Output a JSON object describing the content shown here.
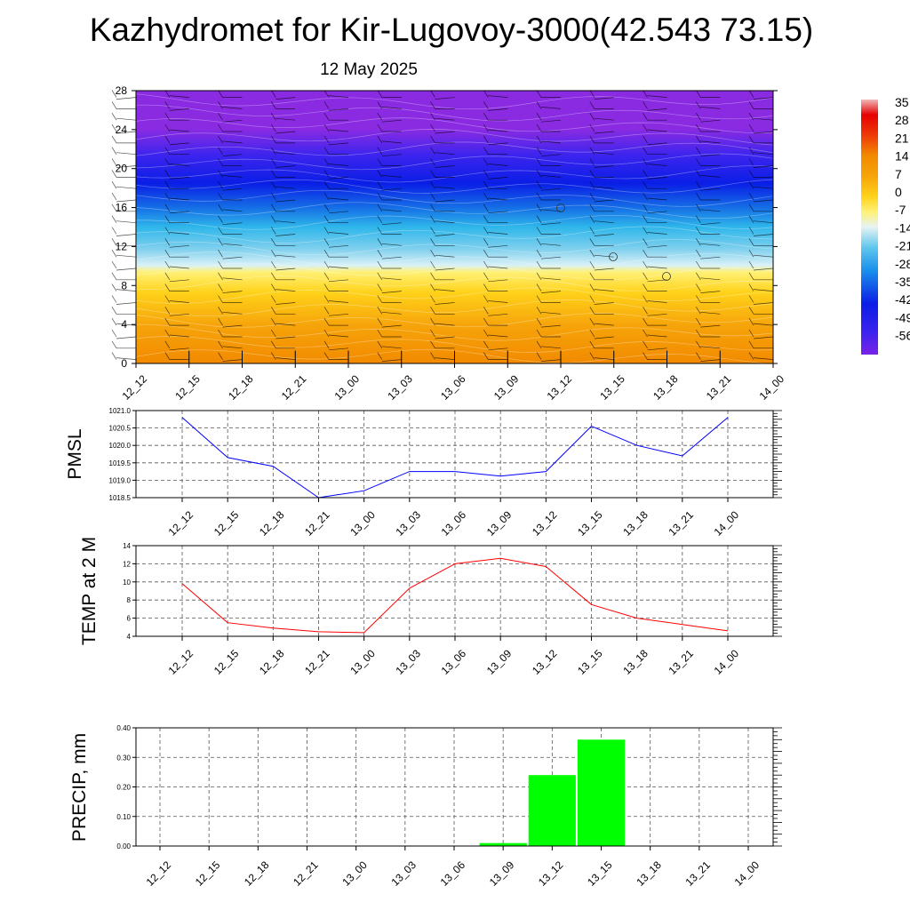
{
  "title": "Kazhydromet for Kir-Lugovoy-3000(42.543 73.15)",
  "subtitle": "12 May 2025",
  "time_labels": [
    "12_12",
    "12_15",
    "12_18",
    "12_21",
    "13_00",
    "13_03",
    "13_06",
    "13_09",
    "13_12",
    "13_15",
    "13_18",
    "13_21",
    "14_00"
  ],
  "chart_data": [
    {
      "type": "heatmap",
      "name": "vertical temperature cross-section with wind barbs",
      "x": [
        "12_12",
        "12_15",
        "12_18",
        "12_21",
        "13_00",
        "13_03",
        "13_06",
        "13_09",
        "13_12",
        "13_15",
        "13_18",
        "13_21",
        "14_00"
      ],
      "ylim": [
        0,
        28
      ],
      "yticks": [
        0,
        4,
        8,
        12,
        16,
        20,
        24,
        28
      ],
      "colorbar": {
        "labels": [
          "35",
          "28",
          "21",
          "14",
          "7",
          "0",
          "-7",
          "-14",
          "-21",
          "-28",
          "-35",
          "-42",
          "-49",
          "-56"
        ],
        "range": [
          -56,
          35
        ]
      },
      "colors": {
        "warm": "#f28a00",
        "yellow": "#fff176",
        "cyan": "#2fb6ea",
        "blue": "#0a1ee6",
        "violet": "#8a2be2"
      },
      "annotations": [
        "o at 13_12 ~16",
        "o at 13_15 ~11",
        "o at 13_18 ~9"
      ]
    },
    {
      "type": "line",
      "ylabel": "PMSL",
      "x": [
        "12_12",
        "12_15",
        "12_18",
        "12_21",
        "13_00",
        "13_03",
        "13_06",
        "13_09",
        "13_12",
        "13_15",
        "13_18",
        "13_21",
        "14_00"
      ],
      "series": [
        {
          "values": [
            1020.8,
            1019.65,
            1019.4,
            1018.5,
            1018.7,
            1019.25,
            1019.25,
            1019.12,
            1019.25,
            1020.55,
            1020.0,
            1019.7,
            1020.8
          ],
          "color": "#0000ff"
        }
      ],
      "ylim": [
        1018.5,
        1021.0
      ],
      "yticks": [
        "1018.5",
        "1019.0",
        "1019.5",
        "1020.0",
        "1020.5",
        "1021.0"
      ],
      "grid": true
    },
    {
      "type": "line",
      "ylabel": "TEMP at 2 M",
      "x": [
        "12_12",
        "12_15",
        "12_18",
        "12_21",
        "13_00",
        "13_03",
        "13_06",
        "13_09",
        "13_12",
        "13_15",
        "13_18",
        "13_21",
        "14_00"
      ],
      "series": [
        {
          "values": [
            9.8,
            5.5,
            4.9,
            4.5,
            4.4,
            9.3,
            12.0,
            12.6,
            11.7,
            7.5,
            6.0,
            5.3,
            4.6
          ],
          "color": "#ff0000"
        }
      ],
      "ylim": [
        4,
        14
      ],
      "yticks": [
        "4",
        "6",
        "8",
        "10",
        "12",
        "14"
      ],
      "grid": true
    },
    {
      "type": "bar",
      "ylabel": "PRECIP, mm",
      "x": [
        "12_12",
        "12_15",
        "12_18",
        "12_21",
        "13_00",
        "13_03",
        "13_06",
        "13_09",
        "13_12",
        "13_15",
        "13_18",
        "13_21",
        "14_00"
      ],
      "values": [
        0,
        0,
        0,
        0,
        0,
        0,
        0,
        0.01,
        0.24,
        0.36,
        0,
        0,
        0
      ],
      "color": "#00ff00",
      "ylim": [
        0,
        0.4
      ],
      "yticks": [
        "0.00",
        "0.10",
        "0.20",
        "0.30",
        "0.40"
      ],
      "grid": true
    }
  ]
}
